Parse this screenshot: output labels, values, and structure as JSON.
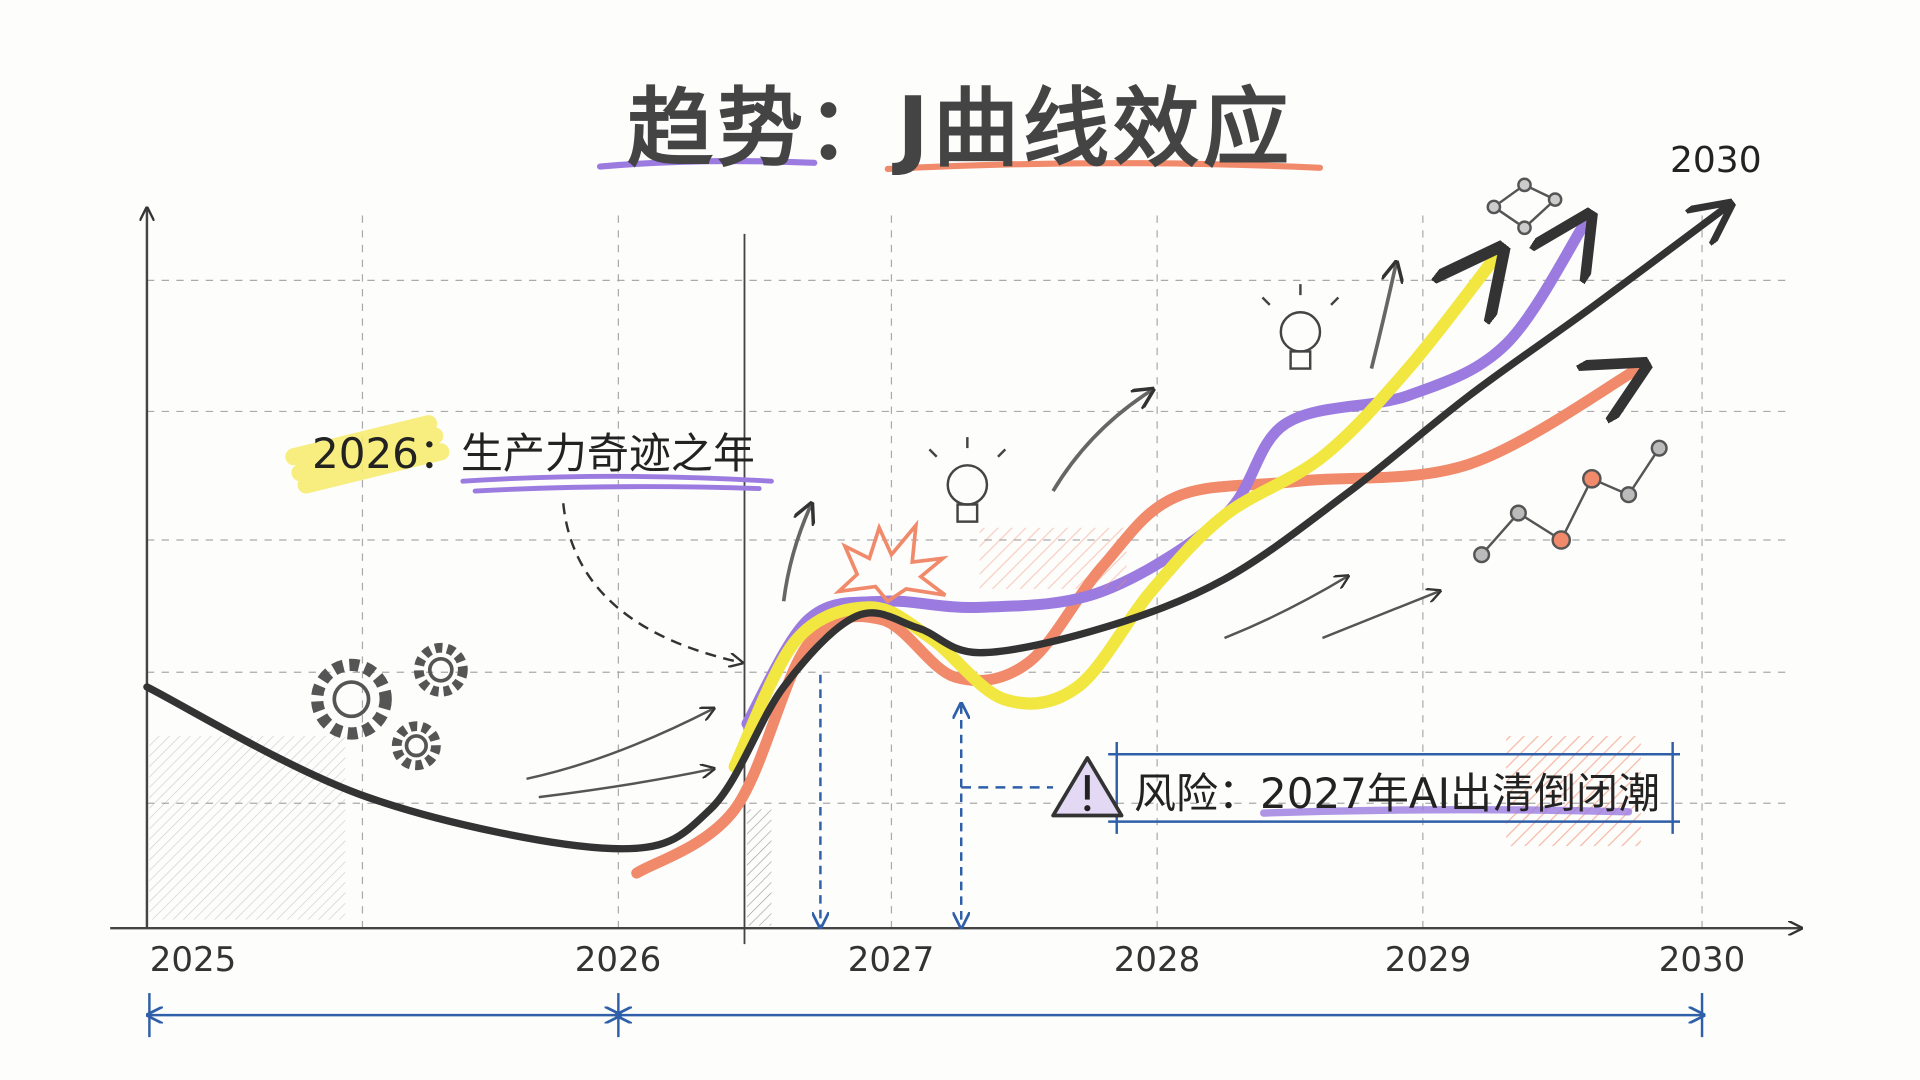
{
  "title": "趋势：J曲线效应",
  "axis": {
    "years": [
      "2025",
      "2026",
      "2027",
      "2028",
      "2029",
      "2030"
    ],
    "arrow_end_label": "2030"
  },
  "annotations": {
    "productivity": "2026：生产力奇迹之年",
    "risk": "风险：2027年AI出清倒闭潮"
  },
  "icons": [
    "gear-icon",
    "lightbulb-icon",
    "explosion-icon",
    "warning-icon",
    "network-icon"
  ],
  "colors": {
    "main_curve": "#333333",
    "purple": "#9b7be0",
    "yellow": "#f2e640",
    "orange": "#f08a6a",
    "blue_dimension": "#2f5fa8",
    "highlight_yellow": "#f7ec6a"
  }
}
